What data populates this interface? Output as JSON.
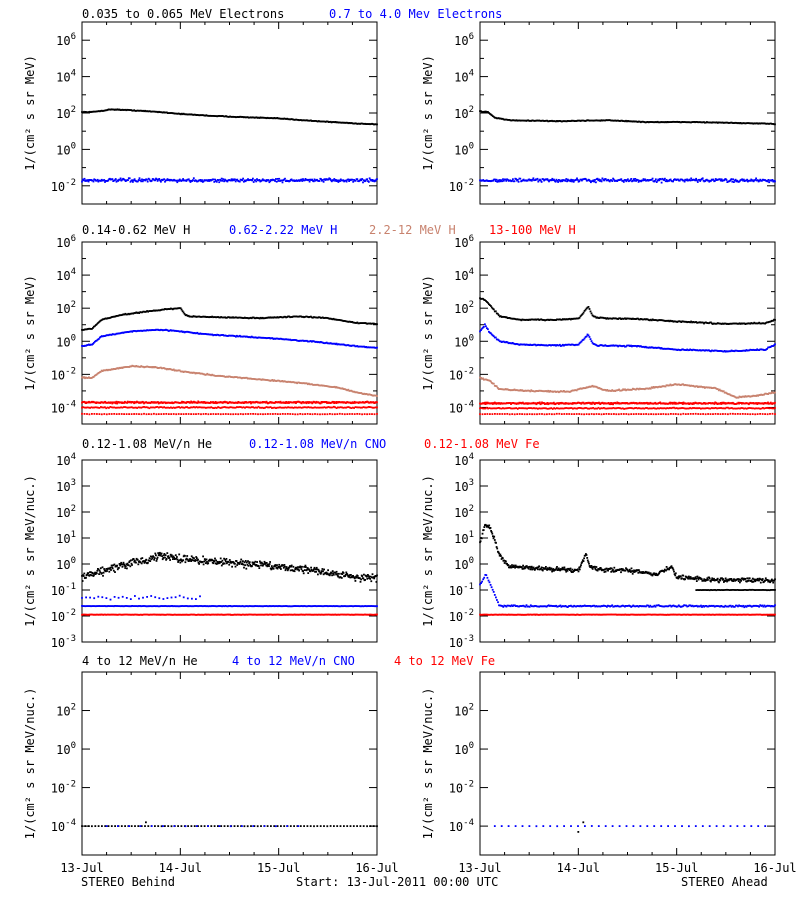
{
  "footer": {
    "left": "STEREO Behind",
    "center": "Start: 13-Jul-2011 00:00 UTC",
    "right": "STEREO Ahead"
  },
  "xaxis": {
    "range": [
      0,
      3
    ],
    "ticks": [
      0,
      1,
      2,
      3
    ],
    "tick_labels": [
      "13-Jul",
      "14-Jul",
      "15-Jul",
      "16-Jul"
    ]
  },
  "colors": {
    "black": "#000000",
    "blue": "#0000ff",
    "tan": "#c8826e",
    "red": "#ff0000"
  },
  "chart_data": [
    {
      "type": "scatter",
      "row_title": [
        {
          "text": "0.035 to 0.065 MeV Electrons",
          "color": "#000000"
        },
        {
          "text": "0.7 to 4.0 Mev Electrons",
          "color": "#0000ff"
        }
      ],
      "ylabel": "1/(cm² s sr MeV)",
      "yscale": "log",
      "ylim_exp": [
        -3,
        7
      ],
      "ytick_exps": [
        -2,
        0,
        2,
        4,
        6
      ],
      "minor_per_decade": true,
      "panels": [
        {
          "spacecraft": "STEREO Behind",
          "series": [
            {
              "color": "#000000",
              "x": [
                0,
                0.1,
                0.2,
                0.3,
                0.5,
                0.8,
                1.0,
                1.3,
                1.6,
                2.0,
                2.4,
                2.8,
                3.0
              ],
              "y_log": [
                2.05,
                2.05,
                2.12,
                2.2,
                2.15,
                2.05,
                1.95,
                1.85,
                1.78,
                1.7,
                1.55,
                1.42,
                1.38
              ],
              "jitter": 0.03
            },
            {
              "color": "#0000ff",
              "x": [
                0,
                3
              ],
              "y_log": [
                -1.7,
                -1.7
              ],
              "jitter": 0.14,
              "density": 360
            }
          ]
        },
        {
          "spacecraft": "STEREO Ahead",
          "series": [
            {
              "color": "#000000",
              "x": [
                0,
                0.08,
                0.15,
                0.3,
                0.8,
                1.3,
                1.7,
                2.2,
                2.6,
                3.0
              ],
              "y_log": [
                2.1,
                2.05,
                1.75,
                1.6,
                1.55,
                1.6,
                1.5,
                1.5,
                1.45,
                1.4
              ],
              "jitter": 0.03
            },
            {
              "color": "#0000ff",
              "x": [
                0,
                3
              ],
              "y_log": [
                -1.7,
                -1.7
              ],
              "jitter": 0.14,
              "density": 360
            }
          ]
        }
      ]
    },
    {
      "type": "scatter",
      "row_title": [
        {
          "text": "0.14-0.62 MeV H",
          "color": "#000000"
        },
        {
          "text": "0.62-2.22 MeV H",
          "color": "#0000ff"
        },
        {
          "text": "2.2-12 MeV H",
          "color": "#c8826e"
        },
        {
          "text": "13-100 MeV H",
          "color": "#ff0000"
        }
      ],
      "ylabel": "1/(cm² s sr MeV)",
      "yscale": "log",
      "ylim_exp": [
        -5,
        6
      ],
      "ytick_exps": [
        -4,
        -2,
        0,
        2,
        4,
        6
      ],
      "minor_per_decade": true,
      "panels": [
        {
          "spacecraft": "STEREO Behind",
          "series": [
            {
              "color": "#000000",
              "x": [
                0,
                0.1,
                0.2,
                0.4,
                0.6,
                0.8,
                1.0,
                1.05,
                1.1,
                1.4,
                1.8,
                2.2,
                2.5,
                2.8,
                3.0
              ],
              "y_log": [
                0.7,
                0.75,
                1.3,
                1.6,
                1.75,
                1.9,
                2.0,
                1.6,
                1.5,
                1.45,
                1.4,
                1.5,
                1.4,
                1.1,
                1.05
              ],
              "jitter": 0.04
            },
            {
              "color": "#0000ff",
              "x": [
                0,
                0.1,
                0.2,
                0.5,
                0.8,
                1.0,
                1.3,
                1.6,
                2.0,
                2.4,
                2.8,
                3.0
              ],
              "y_log": [
                -0.3,
                -0.2,
                0.3,
                0.6,
                0.7,
                0.6,
                0.4,
                0.3,
                0.15,
                -0.05,
                -0.3,
                -0.4
              ],
              "jitter": 0.04
            },
            {
              "color": "#c8826e",
              "x": [
                0,
                0.1,
                0.2,
                0.5,
                0.8,
                1.0,
                1.4,
                1.8,
                2.2,
                2.6,
                2.8,
                3.0
              ],
              "y_log": [
                -2.2,
                -2.2,
                -1.8,
                -1.5,
                -1.6,
                -1.8,
                -2.1,
                -2.3,
                -2.5,
                -2.8,
                -3.1,
                -3.3
              ],
              "jitter": 0.05
            },
            {
              "color": "#ff0000",
              "x": [
                0,
                3
              ],
              "y_log": [
                -3.7,
                -3.7
              ],
              "jitter": 0.07,
              "density": 420
            },
            {
              "color": "#ff0000",
              "x": [
                0,
                3
              ],
              "y_log": [
                -4.0,
                -4.0
              ],
              "jitter": 0.05,
              "density": 220
            },
            {
              "color": "#ff0000",
              "x": [
                0,
                3
              ],
              "y_log": [
                -4.4,
                -4.4
              ],
              "jitter": 0.02,
              "density": 120
            }
          ]
        },
        {
          "spacecraft": "STEREO Ahead",
          "series": [
            {
              "color": "#000000",
              "x": [
                0,
                0.05,
                0.1,
                0.2,
                0.4,
                0.8,
                1.0,
                1.1,
                1.15,
                1.2,
                1.6,
                2.0,
                2.5,
                2.9,
                3.0
              ],
              "y_log": [
                2.6,
                2.5,
                2.2,
                1.5,
                1.3,
                1.3,
                1.35,
                2.1,
                1.5,
                1.4,
                1.35,
                1.2,
                1.05,
                1.1,
                1.3
              ],
              "jitter": 0.05
            },
            {
              "color": "#0000ff",
              "x": [
                0,
                0.05,
                0.1,
                0.2,
                0.4,
                0.8,
                1.0,
                1.1,
                1.15,
                1.2,
                1.6,
                2.0,
                2.5,
                2.9,
                3.0
              ],
              "y_log": [
                0.6,
                1.0,
                0.5,
                0.0,
                -0.2,
                -0.25,
                -0.2,
                0.4,
                -0.15,
                -0.25,
                -0.3,
                -0.5,
                -0.6,
                -0.5,
                -0.2
              ],
              "jitter": 0.05
            },
            {
              "color": "#c8826e",
              "x": [
                0,
                0.1,
                0.2,
                0.5,
                0.9,
                1.15,
                1.3,
                1.7,
                2.0,
                2.4,
                2.6,
                2.8,
                3.0
              ],
              "y_log": [
                -2.2,
                -2.4,
                -2.9,
                -3.0,
                -3.05,
                -2.7,
                -3.0,
                -2.85,
                -2.6,
                -2.85,
                -3.4,
                -3.3,
                -3.1
              ],
              "jitter": 0.06
            },
            {
              "color": "#ff0000",
              "x": [
                0,
                3
              ],
              "y_log": [
                -3.75,
                -3.75
              ],
              "jitter": 0.07,
              "density": 420
            },
            {
              "color": "#ff0000",
              "x": [
                0,
                3
              ],
              "y_log": [
                -4.05,
                -4.05
              ],
              "jitter": 0.05,
              "density": 220
            },
            {
              "color": "#ff0000",
              "x": [
                0,
                3
              ],
              "y_log": [
                -4.4,
                -4.4
              ],
              "jitter": 0.02,
              "density": 120
            }
          ]
        }
      ]
    },
    {
      "type": "scatter",
      "row_title": [
        {
          "text": "0.12-1.08 MeV/n He",
          "color": "#000000"
        },
        {
          "text": "0.12-1.08 MeV/n CNO",
          "color": "#0000ff"
        },
        {
          "text": "0.12-1.08 MeV Fe",
          "color": "#ff0000"
        }
      ],
      "ylabel": "1/(cm² s sr MeV/nuc.)",
      "yscale": "log",
      "ylim_exp": [
        -3,
        4
      ],
      "ytick_exps": [
        -3,
        -2,
        -1,
        0,
        1,
        2,
        3,
        4
      ],
      "minor_per_decade": true,
      "panels": [
        {
          "spacecraft": "STEREO Behind",
          "series": [
            {
              "color": "#000000",
              "x": [
                0,
                0.2,
                0.4,
                0.6,
                0.8,
                1.0,
                1.3,
                1.6,
                2.0,
                2.3,
                2.6,
                2.8,
                3.0
              ],
              "y_log": [
                -0.5,
                -0.3,
                -0.05,
                0.1,
                0.3,
                0.2,
                0.1,
                0.05,
                -0.1,
                -0.2,
                -0.4,
                -0.5,
                -0.55
              ],
              "jitter": 0.22,
              "density": 520
            },
            {
              "color": "#0000ff",
              "x": [
                0,
                3
              ],
              "y_log": [
                -1.62,
                -1.62
              ],
              "jitter": 0.01,
              "density": 260
            },
            {
              "color": "#0000ff",
              "x": [
                0,
                1.2
              ],
              "y_log": [
                -1.3,
                -1.3
              ],
              "jitter": 0.1,
              "density": 30
            },
            {
              "color": "#ff0000",
              "x": [
                0,
                3
              ],
              "y_log": [
                -1.95,
                -1.95
              ],
              "jitter": 0.01,
              "density": 320
            }
          ]
        },
        {
          "spacecraft": "STEREO Ahead",
          "series": [
            {
              "color": "#000000",
              "x": [
                0,
                0.05,
                0.1,
                0.15,
                0.2,
                0.3,
                0.5,
                0.8,
                1.0,
                1.08,
                1.12,
                1.2,
                1.5,
                1.8,
                1.95,
                2.0,
                2.3,
                2.6,
                3.0
              ],
              "y_log": [
                0.8,
                1.5,
                1.4,
                0.9,
                0.3,
                -0.1,
                -0.15,
                -0.2,
                -0.25,
                0.4,
                -0.1,
                -0.2,
                -0.25,
                -0.4,
                -0.1,
                -0.5,
                -0.6,
                -0.6,
                -0.65
              ],
              "jitter": 0.12,
              "density": 480
            },
            {
              "color": "#000000",
              "x": [
                2.2,
                3.0
              ],
              "y_log": [
                -1.0,
                -1.0
              ],
              "jitter": 0.01,
              "density": 60
            },
            {
              "color": "#0000ff",
              "x": [
                0,
                0.06,
                0.12,
                0.2,
                3.0
              ],
              "y_log": [
                -0.8,
                -0.4,
                -0.9,
                -1.62,
                -1.62
              ],
              "jitter": 0.05,
              "density": 280
            },
            {
              "color": "#ff0000",
              "x": [
                0,
                3
              ],
              "y_log": [
                -1.95,
                -1.95
              ],
              "jitter": 0.01,
              "density": 320
            }
          ]
        }
      ]
    },
    {
      "type": "scatter",
      "row_title": [
        {
          "text": "4 to 12 MeV/n He",
          "color": "#000000"
        },
        {
          "text": "4 to 12 MeV/n CNO",
          "color": "#0000ff"
        },
        {
          "text": "4 to 12 MeV Fe",
          "color": "#ff0000"
        }
      ],
      "ylabel": "1/(cm² s sr MeV/nuc.)",
      "yscale": "log",
      "ylim_exp": [
        -5.5,
        4
      ],
      "ytick_exps": [
        -4,
        -2,
        0,
        2
      ],
      "minor_per_decade": false,
      "panels": [
        {
          "spacecraft": "STEREO Behind",
          "series": [
            {
              "color": "#000000",
              "x": [
                0,
                3
              ],
              "y_log": [
                -4.0,
                -4.0
              ],
              "jitter": 0.005,
              "density": 90
            },
            {
              "color": "#0000ff",
              "x": [
                0.25,
                2.2
              ],
              "y_log": [
                -4.0,
                -4.0
              ],
              "jitter": 0.005,
              "density": 18
            },
            {
              "color": "#000000",
              "x": [
                0.65,
                0.65
              ],
              "y_log": [
                -3.8,
                -3.8
              ],
              "jitter": 0.0,
              "density": 1
            }
          ]
        },
        {
          "spacecraft": "STEREO Ahead",
          "series": [
            {
              "color": "#0000ff",
              "x": [
                0.15,
                2.9
              ],
              "y_log": [
                -4.0,
                -4.0
              ],
              "jitter": 0.005,
              "density": 40
            },
            {
              "color": "#000000",
              "x": [
                1.05,
                1.05
              ],
              "y_log": [
                -3.8,
                -3.8
              ],
              "jitter": 0.0,
              "density": 1
            },
            {
              "color": "#000000",
              "x": [
                1.0,
                1.0
              ],
              "y_log": [
                -4.3,
                -4.3
              ],
              "jitter": 0.0,
              "density": 1
            }
          ]
        }
      ]
    }
  ]
}
